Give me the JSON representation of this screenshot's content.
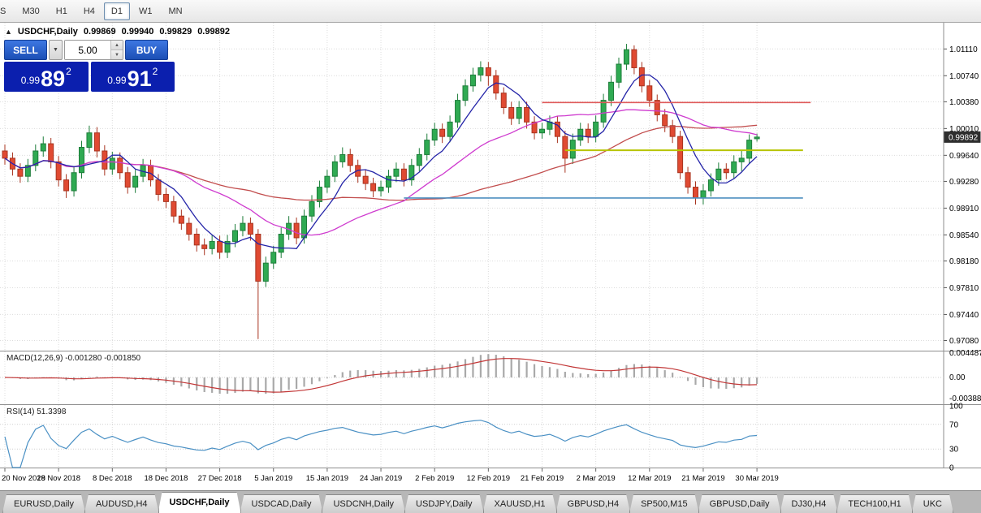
{
  "toolbar": {
    "timeframes": [
      "S",
      "M30",
      "H1",
      "H4",
      "D1",
      "W1",
      "MN"
    ],
    "active": "D1"
  },
  "chart_header": {
    "title": "USDCHF,Daily",
    "open": "0.99869",
    "high": "0.99940",
    "low": "0.99829",
    "close": "0.99892"
  },
  "trade_panel": {
    "sell_label": "SELL",
    "buy_label": "BUY",
    "volume": "5.00",
    "sell_price": {
      "base": "0.99",
      "big": "89",
      "sup": "2"
    },
    "buy_price": {
      "base": "0.99",
      "big": "91",
      "sup": "2"
    }
  },
  "indicators": {
    "macd_label": "MACD(12,26,9)",
    "macd_values": "-0.001280 -0.001850",
    "rsi_label": "RSI(14)",
    "rsi_value": "51.3398"
  },
  "chart_data": {
    "type": "candlestick",
    "symbol": "USDCHF",
    "timeframe": "Daily",
    "current_price": 0.99892,
    "price_axis": [
      1.0111,
      1.0074,
      1.0038,
      1.0001,
      0.9964,
      0.9928,
      0.9891,
      0.9854,
      0.9818,
      0.9781,
      0.9744,
      0.9708
    ],
    "date_labels": [
      "20 Nov 2018",
      "29 Nov 2018",
      "8 Dec 2018",
      "18 Dec 2018",
      "27 Dec 2018",
      "5 Jan 2019",
      "15 Jan 2019",
      "24 Jan 2019",
      "2 Feb 2019",
      "12 Feb 2019",
      "21 Feb 2019",
      "2 Mar 2019",
      "12 Mar 2019",
      "21 Mar 2019",
      "30 Mar 2019"
    ],
    "label_every": 7,
    "colors": {
      "up": "#2faa52",
      "up_border": "#1d7d3a",
      "down": "#e04a32",
      "down_border": "#a8341f"
    },
    "ma": {
      "fast_period": 6,
      "fast_color": "#2424a8",
      "mid_period": 20,
      "mid_color": "#cf3ccf",
      "slow_period": 45,
      "slow_color": "#c24d4d"
    },
    "hlines": [
      {
        "price": 1.0037,
        "from": 70,
        "to": 105,
        "color": "#e05a5a",
        "width": 1.6
      },
      {
        "price": 0.9971,
        "from": 73,
        "to": 104,
        "color": "#b7c400",
        "width": 2
      },
      {
        "price": 0.9905,
        "from": 52,
        "to": 104,
        "color": "#4e8fc0",
        "width": 1.6
      }
    ],
    "macd_axis": [
      "0.004487",
      "0.00",
      "-0.003883"
    ],
    "rsi_axis": [
      "100",
      "70",
      "30",
      "0"
    ],
    "rsi_levels": [
      70,
      30
    ],
    "candles": [
      [
        0.997,
        0.9979,
        0.9951,
        0.996
      ],
      [
        0.996,
        0.9968,
        0.9936,
        0.9945
      ],
      [
        0.9945,
        0.9953,
        0.9926,
        0.9935
      ],
      [
        0.9935,
        0.9959,
        0.9927,
        0.995
      ],
      [
        0.995,
        0.9979,
        0.9942,
        0.997
      ],
      [
        0.997,
        0.999,
        0.9962,
        0.998
      ],
      [
        0.998,
        0.9988,
        0.9946,
        0.9955
      ],
      [
        0.9955,
        0.9963,
        0.9921,
        0.993
      ],
      [
        0.993,
        0.9938,
        0.9905,
        0.9915
      ],
      [
        0.9915,
        0.9949,
        0.9907,
        0.994
      ],
      [
        0.994,
        0.9984,
        0.9932,
        0.9975
      ],
      [
        0.9975,
        1.0005,
        0.9967,
        0.9995
      ],
      [
        0.9995,
        1.0003,
        0.9961,
        0.997
      ],
      [
        0.997,
        0.9978,
        0.9936,
        0.9945
      ],
      [
        0.9945,
        0.9969,
        0.9937,
        0.996
      ],
      [
        0.996,
        0.9968,
        0.9931,
        0.994
      ],
      [
        0.994,
        0.9948,
        0.9911,
        0.992
      ],
      [
        0.992,
        0.9944,
        0.9912,
        0.9935
      ],
      [
        0.9935,
        0.9959,
        0.9927,
        0.995
      ],
      [
        0.995,
        0.9958,
        0.9921,
        0.993
      ],
      [
        0.993,
        0.9938,
        0.9901,
        0.991
      ],
      [
        0.991,
        0.9919,
        0.9891,
        0.99
      ],
      [
        0.99,
        0.9908,
        0.9871,
        0.988
      ],
      [
        0.988,
        0.9889,
        0.9861,
        0.987
      ],
      [
        0.987,
        0.9878,
        0.9846,
        0.9855
      ],
      [
        0.9855,
        0.9863,
        0.9831,
        0.984
      ],
      [
        0.984,
        0.9849,
        0.9826,
        0.9835
      ],
      [
        0.9835,
        0.9854,
        0.9827,
        0.9845
      ],
      [
        0.9845,
        0.9853,
        0.9821,
        0.983
      ],
      [
        0.983,
        0.9854,
        0.9822,
        0.9845
      ],
      [
        0.9845,
        0.9869,
        0.9837,
        0.986
      ],
      [
        0.986,
        0.988,
        0.9852,
        0.987
      ],
      [
        0.987,
        0.9878,
        0.9846,
        0.9855
      ],
      [
        0.9855,
        0.9862,
        0.971,
        0.979
      ],
      [
        0.979,
        0.9824,
        0.9782,
        0.9815
      ],
      [
        0.9815,
        0.9839,
        0.9807,
        0.983
      ],
      [
        0.983,
        0.9864,
        0.9822,
        0.9855
      ],
      [
        0.9855,
        0.988,
        0.9847,
        0.987
      ],
      [
        0.987,
        0.9878,
        0.9841,
        0.985
      ],
      [
        0.985,
        0.9889,
        0.9842,
        0.988
      ],
      [
        0.988,
        0.9909,
        0.9872,
        0.99
      ],
      [
        0.99,
        0.9929,
        0.9892,
        0.992
      ],
      [
        0.992,
        0.9944,
        0.9912,
        0.9935
      ],
      [
        0.9935,
        0.9964,
        0.9927,
        0.9955
      ],
      [
        0.9955,
        0.9975,
        0.9947,
        0.9965
      ],
      [
        0.9965,
        0.9973,
        0.9941,
        0.995
      ],
      [
        0.995,
        0.9958,
        0.9926,
        0.9935
      ],
      [
        0.9935,
        0.9944,
        0.9916,
        0.9925
      ],
      [
        0.9925,
        0.9933,
        0.9906,
        0.9915
      ],
      [
        0.9915,
        0.9929,
        0.9907,
        0.992
      ],
      [
        0.992,
        0.9944,
        0.9912,
        0.9935
      ],
      [
        0.9935,
        0.9954,
        0.9927,
        0.9945
      ],
      [
        0.9945,
        0.9953,
        0.9921,
        0.993
      ],
      [
        0.993,
        0.9959,
        0.9922,
        0.995
      ],
      [
        0.995,
        0.9974,
        0.9942,
        0.9965
      ],
      [
        0.9965,
        0.9994,
        0.9957,
        0.9985
      ],
      [
        0.9985,
        1.0009,
        0.9977,
        1.0
      ],
      [
        1.0,
        1.0008,
        0.9981,
        0.999
      ],
      [
        0.999,
        1.0019,
        0.9982,
        1.001
      ],
      [
        1.001,
        1.0049,
        1.0002,
        1.004
      ],
      [
        1.004,
        1.0069,
        1.0032,
        1.006
      ],
      [
        1.006,
        1.0085,
        1.0052,
        1.0075
      ],
      [
        1.0075,
        1.0094,
        1.0066,
        1.0085
      ],
      [
        1.0085,
        1.0093,
        1.006,
        1.0074
      ],
      [
        1.0074,
        1.0082,
        1.0041,
        1.005
      ],
      [
        1.005,
        1.0058,
        1.0021,
        1.003
      ],
      [
        1.003,
        1.0038,
        1.0006,
        1.0015
      ],
      [
        1.0015,
        1.0039,
        1.0007,
        1.003
      ],
      [
        1.003,
        1.0038,
        1.0001,
        1.001
      ],
      [
        1.001,
        1.0018,
        0.9986,
        0.9995
      ],
      [
        0.9995,
        1.0009,
        0.9987,
        1.0
      ],
      [
        1.0,
        1.0019,
        0.9992,
        1.001
      ],
      [
        1.001,
        1.0018,
        0.9981,
        0.999
      ],
      [
        0.999,
        0.9998,
        0.994,
        0.996
      ],
      [
        0.996,
        0.9994,
        0.9952,
        0.9985
      ],
      [
        0.9985,
        1.0009,
        0.9977,
        1.0
      ],
      [
        1.0,
        1.0008,
        0.9981,
        0.999
      ],
      [
        0.999,
        1.0019,
        0.9982,
        1.001
      ],
      [
        1.001,
        1.0049,
        1.0002,
        1.004
      ],
      [
        1.004,
        1.0074,
        1.0032,
        1.0065
      ],
      [
        1.0065,
        1.0099,
        1.0057,
        1.009
      ],
      [
        1.009,
        1.0118,
        1.0082,
        1.011
      ],
      [
        1.011,
        1.0116,
        1.0076,
        1.0085
      ],
      [
        1.0085,
        1.0093,
        1.0051,
        1.006
      ],
      [
        1.006,
        1.0068,
        1.0031,
        1.004
      ],
      [
        1.004,
        1.0048,
        1.0011,
        1.002
      ],
      [
        1.002,
        1.0028,
        0.9996,
        1.0005
      ],
      [
        1.0005,
        1.0013,
        0.9981,
        0.999
      ],
      [
        0.999,
        0.9998,
        0.9931,
        0.994
      ],
      [
        0.994,
        0.9948,
        0.9911,
        0.992
      ],
      [
        0.992,
        0.9928,
        0.9896,
        0.9905
      ],
      [
        0.9905,
        0.9924,
        0.9896,
        0.9915
      ],
      [
        0.9915,
        0.9939,
        0.9907,
        0.993
      ],
      [
        0.993,
        0.9954,
        0.9922,
        0.9945
      ],
      [
        0.9945,
        0.9953,
        0.9931,
        0.994
      ],
      [
        0.994,
        0.9964,
        0.9932,
        0.9955
      ],
      [
        0.9955,
        0.997,
        0.9942,
        0.996
      ],
      [
        0.996,
        0.9993,
        0.9952,
        0.9985
      ],
      [
        0.99869,
        0.9994,
        0.99829,
        0.99892
      ]
    ]
  },
  "bottom_tabs": {
    "active_index": 2,
    "items": [
      "EURUSD,Daily",
      "AUDUSD,H4",
      "USDCHF,Daily",
      "USDCAD,Daily",
      "USDCNH,Daily",
      "USDJPY,Daily",
      "XAUUSD,H1",
      "GBPUSD,H4",
      "SP500,M15",
      "GBPUSD,Daily",
      "DJ30,H4",
      "TECH100,H1",
      "UKC"
    ]
  }
}
